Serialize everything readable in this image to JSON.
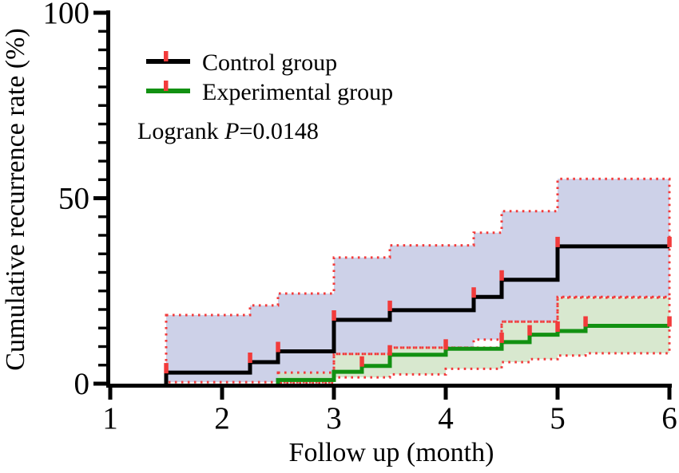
{
  "chart_data": {
    "type": "line",
    "subtype": "kaplan-meier-step-cumulative-incidence",
    "title": "",
    "xlabel": "Follow up (month)",
    "ylabel": "Cumulative recurrence rate (%)",
    "xlim": [
      1,
      6
    ],
    "ylim": [
      0,
      100
    ],
    "x_ticks": [
      1,
      2,
      3,
      4,
      5,
      6
    ],
    "y_ticks": [
      0,
      50,
      100
    ],
    "y_minor_step": 5,
    "grid": "off",
    "legend_position": "top-left-inside",
    "annotation": {
      "text": "Logrank P=0.0148",
      "prefix": "Logrank ",
      "italic": "P",
      "suffix": "=0.0148"
    },
    "censor_mark_color": "#f23b3b",
    "band_border_color": "#f23b3b",
    "series": [
      {
        "name": "Control group",
        "color": "#000000",
        "band_fill": "#cdd1e8",
        "band_fill_opacity": 1,
        "steps": [
          [
            1.5,
            0
          ],
          [
            1.5,
            3
          ],
          [
            2.25,
            3
          ],
          [
            2.25,
            5.8
          ],
          [
            2.5,
            5.8
          ],
          [
            2.5,
            8.7
          ],
          [
            3,
            8.7
          ],
          [
            3,
            17.2
          ],
          [
            3.5,
            17.2
          ],
          [
            3.5,
            19.8
          ],
          [
            4.25,
            19.8
          ],
          [
            4.25,
            23.4
          ],
          [
            4.5,
            23.4
          ],
          [
            4.5,
            28
          ],
          [
            5,
            28
          ],
          [
            5,
            37
          ],
          [
            6,
            37
          ]
        ],
        "censor_marks": [
          [
            1.5,
            3
          ],
          [
            2.25,
            5.8
          ],
          [
            2.5,
            8.7
          ],
          [
            3,
            17.2
          ],
          [
            3.5,
            19.8
          ],
          [
            4.25,
            23.4
          ],
          [
            4.5,
            28
          ],
          [
            5,
            37
          ],
          [
            6,
            37
          ]
        ],
        "ci_upper": [
          [
            1.5,
            18.5
          ],
          [
            2.25,
            18.5
          ],
          [
            2.25,
            21.1
          ],
          [
            2.5,
            21.1
          ],
          [
            2.5,
            24.3
          ],
          [
            3,
            24.3
          ],
          [
            3,
            34
          ],
          [
            3.5,
            34
          ],
          [
            3.5,
            37.3
          ],
          [
            4.25,
            37.3
          ],
          [
            4.25,
            40.7
          ],
          [
            4.5,
            40.7
          ],
          [
            4.5,
            46.5
          ],
          [
            5,
            46.5
          ],
          [
            5,
            55.2
          ],
          [
            6,
            55.2
          ]
        ],
        "ci_lower": [
          [
            1.5,
            0.4
          ],
          [
            3,
            0.4
          ],
          [
            3,
            8
          ],
          [
            3.5,
            8
          ],
          [
            3.5,
            9.7
          ],
          [
            4.25,
            9.7
          ],
          [
            4.25,
            11.9
          ],
          [
            4.5,
            11.9
          ],
          [
            4.5,
            16.7
          ],
          [
            5,
            16.7
          ],
          [
            5,
            23.4
          ],
          [
            6,
            23.4
          ]
        ]
      },
      {
        "name": "Experimental group",
        "color": "#129112",
        "band_fill": "#cfe3c4",
        "band_fill_opacity": 0.82,
        "steps": [
          [
            2.5,
            0
          ],
          [
            2.5,
            1
          ],
          [
            3,
            1
          ],
          [
            3,
            3.2
          ],
          [
            3.25,
            3.2
          ],
          [
            3.25,
            4.8
          ],
          [
            3.5,
            4.8
          ],
          [
            3.5,
            7.8
          ],
          [
            4,
            7.8
          ],
          [
            4,
            9.4
          ],
          [
            4.5,
            9.4
          ],
          [
            4.5,
            11.2
          ],
          [
            4.75,
            11.2
          ],
          [
            4.75,
            13.2
          ],
          [
            5,
            13.2
          ],
          [
            5,
            14.2
          ],
          [
            5.25,
            14.2
          ],
          [
            5.25,
            15.6
          ],
          [
            6,
            15.6
          ]
        ],
        "censor_marks": [
          [
            3.25,
            4.8
          ],
          [
            3.5,
            7.8
          ],
          [
            4,
            9.4
          ],
          [
            4.5,
            11.2
          ],
          [
            4.75,
            13.2
          ],
          [
            5,
            14.2
          ],
          [
            5.25,
            15.6
          ],
          [
            6,
            15.6
          ]
        ],
        "ci_upper": [
          [
            2.5,
            3
          ],
          [
            3,
            3
          ],
          [
            3,
            8
          ],
          [
            3.5,
            8
          ],
          [
            3.5,
            9.7
          ],
          [
            4.5,
            9.7
          ],
          [
            4.5,
            16.7
          ],
          [
            5,
            16.7
          ],
          [
            5,
            23.2
          ],
          [
            6,
            23.2
          ]
        ],
        "ci_lower": [
          [
            2.5,
            0.2
          ],
          [
            3,
            0.2
          ],
          [
            3,
            1.7
          ],
          [
            3.5,
            1.7
          ],
          [
            3.5,
            2.5
          ],
          [
            4,
            2.5
          ],
          [
            4,
            4
          ],
          [
            4.5,
            4
          ],
          [
            4.5,
            5.8
          ],
          [
            4.75,
            5.8
          ],
          [
            4.75,
            6.6
          ],
          [
            5,
            6.6
          ],
          [
            5,
            7.6
          ],
          [
            5.25,
            7.6
          ],
          [
            5.25,
            8.2
          ],
          [
            6,
            8.2
          ]
        ]
      }
    ]
  }
}
